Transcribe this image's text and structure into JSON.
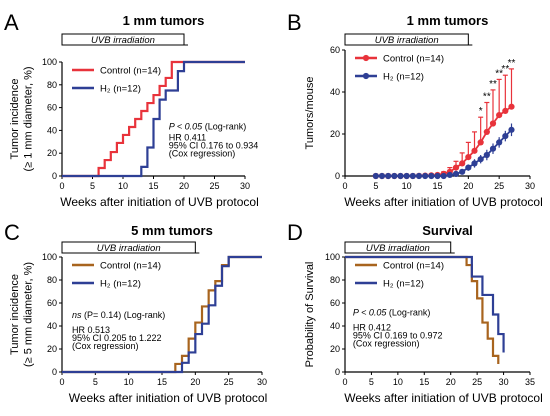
{
  "figure": {
    "colors": {
      "red": "#e8333b",
      "blue": "#2e3f95",
      "brown": "#a8641e",
      "axis": "#000000"
    }
  },
  "chart_data": [
    {
      "panel_letter": "A",
      "type": "line",
      "step": true,
      "title": "1 mm tumors",
      "banner": "UVB irradiation",
      "xlabel": "Weeks after initiation of UVB protocol",
      "ylabel": "Tumor incidence\n(≥ 1 mm diameter, %)",
      "xlim": [
        0,
        30
      ],
      "ylim": [
        0,
        100
      ],
      "xticks": [
        0,
        5,
        10,
        15,
        20,
        25,
        30
      ],
      "yticks": [
        0,
        20,
        40,
        60,
        80,
        100
      ],
      "legend_position": "top-left",
      "series": [
        {
          "name": "Control (n=14)",
          "color": "#e8333b",
          "x": [
            0,
            6,
            7,
            8,
            9,
            10,
            11,
            12,
            13,
            14,
            15,
            16,
            17,
            18,
            30
          ],
          "y": [
            0,
            7,
            14,
            21,
            29,
            36,
            43,
            50,
            57,
            64,
            71,
            79,
            86,
            100,
            100
          ]
        },
        {
          "name": "H₂ (n=12)",
          "color": "#2e3f95",
          "x": [
            0,
            13,
            14,
            15,
            16,
            17,
            19,
            20,
            30
          ],
          "y": [
            0,
            8,
            25,
            50,
            67,
            75,
            92,
            100,
            100
          ]
        }
      ],
      "annotations": [
        {
          "text": "P < 0.05",
          "rest": " (Log-rank)",
          "x": 17.5,
          "y": 41
        },
        {
          "text": "HR 0.411",
          "x": 17.5,
          "y": 31
        },
        {
          "text": "95% CI 0.176 to 0.934",
          "x": 17.5,
          "y": 24
        },
        {
          "text": "(Cox regression)",
          "x": 17.5,
          "y": 17
        }
      ]
    },
    {
      "panel_letter": "B",
      "type": "line",
      "title": "1 mm tumors",
      "banner": "UVB irradiation",
      "xlabel": "Weeks after initiation of UVB protocol",
      "ylabel": "Tumors/mouse",
      "xlim": [
        0,
        30
      ],
      "ylim": [
        0,
        60
      ],
      "xticks": [
        0,
        5,
        10,
        15,
        20,
        25,
        30
      ],
      "yticks": [
        0,
        20,
        40,
        60
      ],
      "legend_position": "top-left",
      "series": [
        {
          "name": "Control (n=14)",
          "color": "#e8333b",
          "x": [
            5,
            6,
            7,
            8,
            9,
            10,
            11,
            12,
            13,
            14,
            15,
            16,
            17,
            18,
            19,
            20,
            21,
            22,
            23,
            24,
            25,
            26,
            27
          ],
          "y": [
            0,
            0,
            0,
            0,
            0,
            0,
            0,
            0.1,
            0.2,
            0.3,
            0.5,
            1,
            2,
            4,
            6,
            9,
            12,
            16,
            21,
            25,
            29,
            31,
            33
          ],
          "err": [
            0,
            0,
            0,
            0,
            0,
            0,
            0,
            0.1,
            0.2,
            0.3,
            0.5,
            1,
            2,
            3,
            5,
            7,
            9,
            12,
            14,
            16,
            17,
            17,
            18
          ]
        },
        {
          "name": "H₂ (n=12)",
          "color": "#2e3f95",
          "x": [
            5,
            6,
            7,
            8,
            9,
            10,
            11,
            12,
            13,
            14,
            15,
            16,
            17,
            18,
            19,
            20,
            21,
            22,
            23,
            24,
            25,
            26,
            27
          ],
          "y": [
            0,
            0,
            0,
            0,
            0,
            0,
            0,
            0,
            0,
            0,
            0,
            0,
            0.5,
            1,
            2,
            4,
            6,
            8,
            10,
            13,
            16,
            19,
            22
          ],
          "err": [
            0,
            0,
            0,
            0,
            0,
            0,
            0,
            0,
            0,
            0,
            0,
            0,
            0.3,
            0.5,
            1,
            1.5,
            2,
            2,
            2.5,
            2.5,
            2.5,
            2.5,
            3
          ]
        }
      ],
      "significance": [
        {
          "x": 22,
          "label": "*"
        },
        {
          "x": 23,
          "label": "**"
        },
        {
          "x": 24,
          "label": "**"
        },
        {
          "x": 25,
          "label": "**"
        },
        {
          "x": 26,
          "label": "**"
        },
        {
          "x": 27,
          "label": "**"
        }
      ]
    },
    {
      "panel_letter": "C",
      "type": "line",
      "step": true,
      "title": "5 mm tumors",
      "banner": "UVB irradiation",
      "xlabel": "Weeks after initiation of UVB protocol",
      "ylabel": "Tumor incidence\n(≥ 5 mm diameter, %)",
      "xlim": [
        0,
        30
      ],
      "ylim": [
        0,
        100
      ],
      "xticks": [
        0,
        5,
        10,
        15,
        20,
        25,
        30
      ],
      "yticks": [
        0,
        20,
        40,
        60,
        80,
        100
      ],
      "legend_position": "top-left",
      "series": [
        {
          "name": "Control (n=14)",
          "color": "#a8641e",
          "x": [
            0,
            17,
            18,
            19,
            20,
            21,
            22,
            23,
            24,
            25,
            30
          ],
          "y": [
            0,
            7,
            14,
            29,
            43,
            57,
            71,
            79,
            93,
            100,
            100
          ]
        },
        {
          "name": "H₂ (n=12)",
          "color": "#2e3f95",
          "x": [
            0,
            18,
            19,
            20,
            21,
            22,
            23,
            24,
            25,
            30
          ],
          "y": [
            0,
            8,
            17,
            33,
            42,
            58,
            75,
            92,
            100,
            100
          ]
        }
      ],
      "annotations": [
        {
          "text": "ns",
          "rest": "  (P= 0.14)  (Log-rank)",
          "x": 1.5,
          "y": 47
        },
        {
          "text": "HR 0.513",
          "x": 1.5,
          "y": 34
        },
        {
          "text": "95% CI 0.205 to 1.222",
          "x": 1.5,
          "y": 27
        },
        {
          "text": "(Cox regression)",
          "x": 1.5,
          "y": 20
        }
      ]
    },
    {
      "panel_letter": "D",
      "type": "line",
      "step": true,
      "title": "Survival",
      "banner": "UVB irradiation",
      "xlabel": "Weeks after initiation of UVB protocol",
      "ylabel": "Probability of Survival",
      "xlim": [
        0,
        35
      ],
      "ylim": [
        0,
        100
      ],
      "xticks": [
        0,
        5,
        10,
        15,
        20,
        25,
        30,
        35
      ],
      "yticks": [
        0,
        20,
        40,
        60,
        80,
        100
      ],
      "legend_position": "top-left",
      "series": [
        {
          "name": "Control (n=14)",
          "color": "#a8641e",
          "x": [
            0,
            23,
            24,
            25,
            26,
            27,
            28,
            29
          ],
          "y": [
            100,
            93,
            79,
            64,
            43,
            29,
            14,
            7
          ]
        },
        {
          "name": "H₂ (n=12)",
          "color": "#2e3f95",
          "x": [
            0,
            24,
            26,
            28,
            29,
            30
          ],
          "y": [
            100,
            83,
            67,
            50,
            33,
            17
          ]
        }
      ],
      "annotations": [
        {
          "text": "P < 0.05",
          "rest": " (Log-rank)",
          "x": 1.5,
          "y": 49
        },
        {
          "text": "HR 0.412",
          "x": 1.5,
          "y": 36
        },
        {
          "text": "95% CI 0.169 to 0.972",
          "x": 1.5,
          "y": 29
        },
        {
          "text": "(Cox regression)",
          "x": 1.5,
          "y": 22
        }
      ]
    }
  ]
}
